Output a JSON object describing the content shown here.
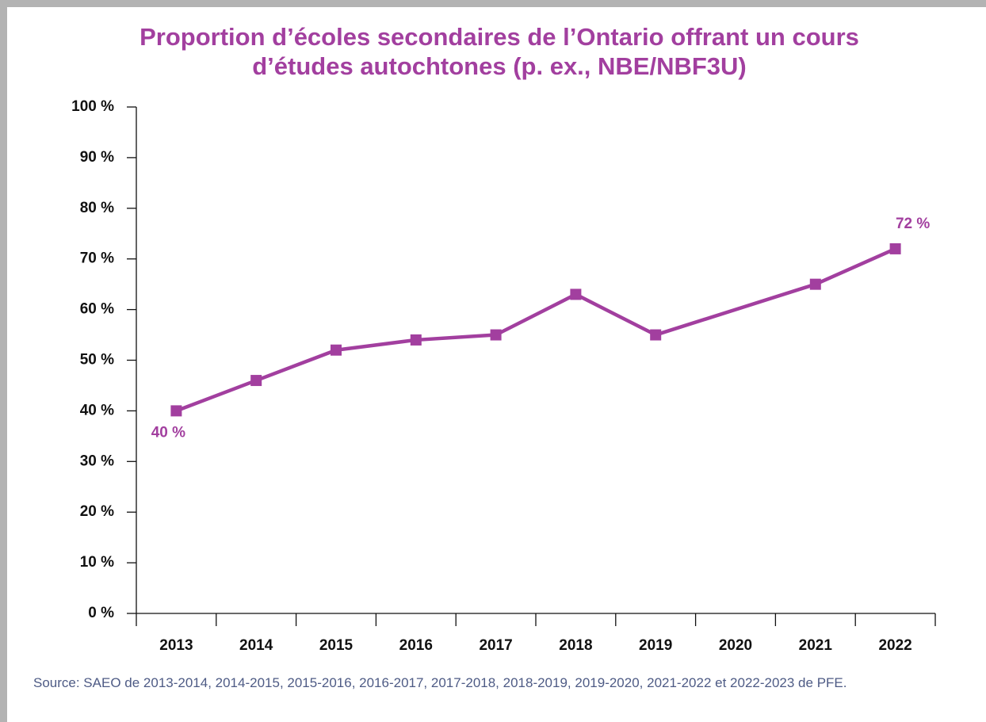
{
  "chart_data": {
    "type": "line",
    "title": "Proportion d’écoles secondaires de l’Ontario offrant un cours d’études autochtones (p. ex., NBE/NBF3U)",
    "x": [
      2013,
      2014,
      2015,
      2016,
      2017,
      2018,
      2019,
      2021,
      2022
    ],
    "xlim": [
      2012.5,
      2022.5
    ],
    "xticks": [
      2013,
      2014,
      2015,
      2016,
      2017,
      2018,
      2019,
      2020,
      2021,
      2022
    ],
    "series": [
      {
        "name": null,
        "color": "#a23f9f",
        "values": [
          40,
          46,
          52,
          54,
          55,
          63,
          55,
          65,
          72
        ],
        "value_labels": [
          "40 %",
          null,
          null,
          null,
          null,
          null,
          null,
          null,
          "72 %"
        ]
      }
    ],
    "ylim": [
      0,
      100
    ],
    "yticks": [
      {
        "value": 0,
        "label": "0 %"
      },
      {
        "value": 10,
        "label": "10 %"
      },
      {
        "value": 20,
        "label": "20 %"
      },
      {
        "value": 30,
        "label": "30 %"
      },
      {
        "value": 40,
        "label": "40 %"
      },
      {
        "value": 50,
        "label": "50 %"
      },
      {
        "value": 60,
        "label": "60 %"
      },
      {
        "value": 70,
        "label": "70 %"
      },
      {
        "value": 80,
        "label": "80 %"
      },
      {
        "value": 90,
        "label": "90 %"
      },
      {
        "value": 100,
        "label": "100 %"
      }
    ],
    "source": "Source: SAEO de 2013-2014, 2014-2015, 2015-2016, 2016-2017, 2017-2018, 2018-2019, 2019-2020, 2021-2022 et 2022-2023 de PFE."
  }
}
